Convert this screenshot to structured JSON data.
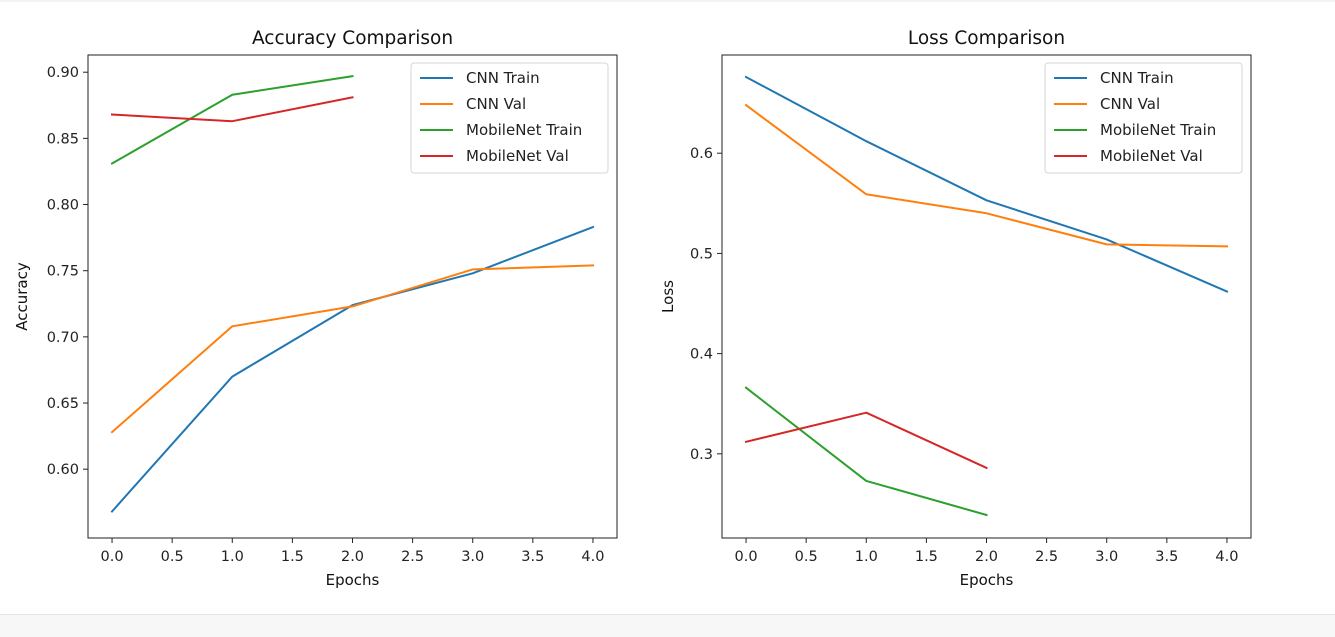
{
  "chart_data": [
    {
      "type": "line",
      "title": "Accuracy Comparison",
      "xlabel": "Epochs",
      "ylabel": "Accuracy",
      "xlim": [
        -0.2,
        4.2
      ],
      "ylim": [
        0.548,
        0.913
      ],
      "xticks": [
        "0.0",
        "0.5",
        "1.0",
        "1.5",
        "2.0",
        "2.5",
        "3.0",
        "3.5",
        "4.0"
      ],
      "yticks": [
        "0.60",
        "0.65",
        "0.70",
        "0.75",
        "0.80",
        "0.85",
        "0.90"
      ],
      "legend_position": "top-right",
      "series": [
        {
          "name": "CNN Train",
          "color": "#1f77b4",
          "x": [
            0,
            1,
            2,
            3,
            4
          ],
          "y": [
            0.568,
            0.67,
            0.724,
            0.748,
            0.783
          ]
        },
        {
          "name": "CNN Val",
          "color": "#ff7f0e",
          "x": [
            0,
            1,
            2,
            3,
            4
          ],
          "y": [
            0.628,
            0.708,
            0.723,
            0.751,
            0.754
          ]
        },
        {
          "name": "MobileNet Train",
          "color": "#2ca02c",
          "x": [
            0,
            1,
            2
          ],
          "y": [
            0.831,
            0.883,
            0.897
          ]
        },
        {
          "name": "MobileNet Val",
          "color": "#d62728",
          "x": [
            0,
            1,
            2
          ],
          "y": [
            0.868,
            0.863,
            0.881
          ]
        }
      ]
    },
    {
      "type": "line",
      "title": "Loss Comparison",
      "xlabel": "Epochs",
      "ylabel": "Loss",
      "xlim": [
        -0.2,
        4.2
      ],
      "ylim": [
        0.216,
        0.698
      ],
      "xticks": [
        "0.0",
        "0.5",
        "1.0",
        "1.5",
        "2.0",
        "2.5",
        "3.0",
        "3.5",
        "4.0"
      ],
      "yticks": [
        "0.3",
        "0.4",
        "0.5",
        "0.6"
      ],
      "legend_position": "top-right",
      "series": [
        {
          "name": "CNN Train",
          "color": "#1f77b4",
          "x": [
            0,
            1,
            2,
            3,
            4
          ],
          "y": [
            0.676,
            0.612,
            0.553,
            0.514,
            0.462
          ]
        },
        {
          "name": "CNN Val",
          "color": "#ff7f0e",
          "x": [
            0,
            1,
            2,
            3,
            4
          ],
          "y": [
            0.648,
            0.559,
            0.54,
            0.509,
            0.507
          ]
        },
        {
          "name": "MobileNet Train",
          "color": "#2ca02c",
          "x": [
            0,
            1,
            2
          ],
          "y": [
            0.366,
            0.273,
            0.239
          ]
        },
        {
          "name": "MobileNet Val",
          "color": "#d62728",
          "x": [
            0,
            1,
            2
          ],
          "y": [
            0.312,
            0.341,
            0.286
          ]
        }
      ]
    }
  ]
}
